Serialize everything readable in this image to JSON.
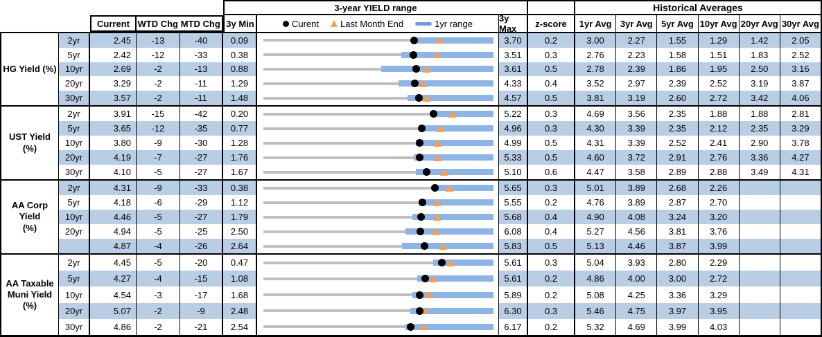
{
  "colors": {
    "stripe": "#B9CDE5",
    "bar": "#8DB4E2",
    "legend_bar": "#6D9ED8",
    "track": "#BFBFBF",
    "dot": "#000000",
    "triangle": "#F79F53",
    "border": "#000000"
  },
  "titles": {
    "range": "3-year YIELD range",
    "historical": "Historical Averages"
  },
  "columns": {
    "current": "Current",
    "wtd_chg": "WTD Chg",
    "mtd_chg": "MTD Chg",
    "min_3y": "3y Min",
    "max_3y": "3y Max",
    "z_score": "z-score",
    "averages": [
      "1yr Avg",
      "3yr Avg",
      "5yr Avg",
      "10yr Avg",
      "20yr Avg",
      "30yr Avg"
    ]
  },
  "legend": {
    "current": "Curent",
    "last_month": "Last Month End",
    "range_1yr": "1yr range"
  },
  "chart_data": {
    "type": "table",
    "note": "Each row embeds a 3-year range bullet chart: gray track spans min3y-max3y, blue bar = 1yr range (yr1min to max3y, estimated from pixels), black dot = current, orange triangle = last month end (lme = current - mtd/100).",
    "sections": [
      {
        "label": "HG Yield (%)",
        "label_lines": [
          "HG Yield (%)"
        ],
        "rows": [
          {
            "tenor": "2yr",
            "current": "2.45",
            "wtd": "-13",
            "mtd": "-40",
            "min3y": "0.09",
            "max3y": "3.70",
            "z": "0.2",
            "avgs": [
              "3.00",
              "2.27",
              "1.55",
              "1.29",
              "1.42",
              "2.05"
            ],
            "lme": 2.85,
            "yr1min": 2.5
          },
          {
            "tenor": "5yr",
            "current": "2.42",
            "wtd": "-12",
            "mtd": "-33",
            "min3y": "0.38",
            "max3y": "3.51",
            "z": "0.3",
            "avgs": [
              "2.76",
              "2.23",
              "1.58",
              "1.51",
              "1.83",
              "2.52"
            ],
            "lme": 2.75,
            "yr1min": 2.26
          },
          {
            "tenor": "10yr",
            "current": "2.69",
            "wtd": "-2",
            "mtd": "-13",
            "min3y": "0.88",
            "max3y": "3.61",
            "z": "0.5",
            "avgs": [
              "2.78",
              "2.39",
              "1.86",
              "1.95",
              "2.50",
              "3.16"
            ],
            "lme": 2.82,
            "yr1min": 2.28
          },
          {
            "tenor": "20yr",
            "current": "3.29",
            "wtd": "-2",
            "mtd": "-11",
            "min3y": "1.29",
            "max3y": "4.33",
            "z": "0.4",
            "avgs": [
              "3.52",
              "2.97",
              "2.39",
              "2.52",
              "3.19",
              "3.87"
            ],
            "lme": 3.4,
            "yr1min": 3.08
          },
          {
            "tenor": "30yr",
            "current": "3.57",
            "wtd": "-2",
            "mtd": "-11",
            "min3y": "1.48",
            "max3y": "4.57",
            "z": "0.5",
            "avgs": [
              "3.81",
              "3.19",
              "2.60",
              "2.72",
              "3.42",
              "4.06"
            ],
            "lme": 3.68,
            "yr1min": 3.42
          }
        ]
      },
      {
        "label": "UST Yield (%)",
        "label_lines": [
          "UST Yield (%)"
        ],
        "rows": [
          {
            "tenor": "2yr",
            "current": "3.91",
            "wtd": "-15",
            "mtd": "-42",
            "min3y": "0.20",
            "max3y": "5.22",
            "z": "0.3",
            "avgs": [
              "4.69",
              "3.56",
              "2.35",
              "1.88",
              "1.88",
              "2.81"
            ],
            "lme": 4.33,
            "yr1min": 3.88
          },
          {
            "tenor": "5yr",
            "current": "3.65",
            "wtd": "-12",
            "mtd": "-35",
            "min3y": "0.77",
            "max3y": "4.96",
            "z": "0.3",
            "avgs": [
              "4.30",
              "3.39",
              "2.35",
              "2.12",
              "2.35",
              "3.29"
            ],
            "lme": 4.0,
            "yr1min": 3.62
          },
          {
            "tenor": "10yr",
            "current": "3.80",
            "wtd": "-9",
            "mtd": "-30",
            "min3y": "1.28",
            "max3y": "4.99",
            "z": "0.5",
            "avgs": [
              "4.31",
              "3.39",
              "2.52",
              "2.41",
              "2.90",
              "3.78"
            ],
            "lme": 4.1,
            "yr1min": 3.74
          },
          {
            "tenor": "20yr",
            "current": "4.19",
            "wtd": "-7",
            "mtd": "-27",
            "min3y": "1.76",
            "max3y": "5.33",
            "z": "0.5",
            "avgs": [
              "4.60",
              "3.72",
              "2.91",
              "2.76",
              "3.36",
              "4.27"
            ],
            "lme": 4.46,
            "yr1min": 4.09
          },
          {
            "tenor": "30yr",
            "current": "4.10",
            "wtd": "-5",
            "mtd": "-27",
            "min3y": "1.67",
            "max3y": "5.10",
            "z": "0.6",
            "avgs": [
              "4.47",
              "3.58",
              "2.89",
              "2.88",
              "3.49",
              "4.31"
            ],
            "lme": 4.37,
            "yr1min": 3.94
          }
        ]
      },
      {
        "label": "AA Corp Yield (%)",
        "label_lines": [
          "AA Corp Yield",
          "(%)"
        ],
        "rows": [
          {
            "tenor": "2yr",
            "current": "4.31",
            "wtd": "-9",
            "mtd": "-33",
            "min3y": "0.38",
            "max3y": "5.65",
            "z": "0.3",
            "avgs": [
              "5.01",
              "3.89",
              "2.68",
              "2.26",
              "",
              ""
            ],
            "lme": 4.64,
            "yr1min": 4.28
          },
          {
            "tenor": "5yr",
            "current": "4.18",
            "wtd": "-6",
            "mtd": "-29",
            "min3y": "1.12",
            "max3y": "5.55",
            "z": "0.2",
            "avgs": [
              "4.76",
              "3.89",
              "2.87",
              "2.70",
              "",
              ""
            ],
            "lme": 4.47,
            "yr1min": 4.11
          },
          {
            "tenor": "10yr",
            "current": "4.46",
            "wtd": "-5",
            "mtd": "-27",
            "min3y": "1.79",
            "max3y": "5.68",
            "z": "0.4",
            "avgs": [
              "4.90",
              "4.08",
              "3.24",
              "3.20",
              "",
              ""
            ],
            "lme": 4.73,
            "yr1min": 4.31
          },
          {
            "tenor": "20yr",
            "current": "4.94",
            "wtd": "-5",
            "mtd": "-25",
            "min3y": "2.50",
            "max3y": "6.08",
            "z": "0.4",
            "avgs": [
              "5.27",
              "4.56",
              "3.81",
              "3.76",
              "",
              ""
            ],
            "lme": 5.19,
            "yr1min": 4.71
          },
          {
            "tenor": "",
            "current": "4.87",
            "wtd": "-4",
            "mtd": "-26",
            "min3y": "2.64",
            "max3y": "5.83",
            "z": "0.5",
            "avgs": [
              "5.13",
              "4.46",
              "3.87",
              "3.99",
              "",
              ""
            ],
            "lme": 5.13,
            "yr1min": 4.56
          }
        ]
      },
      {
        "label": "AA Taxable Muni Yield (%)",
        "label_lines": [
          "AA Taxable",
          "Muni Yield",
          "(%)"
        ],
        "rows": [
          {
            "tenor": "2yr",
            "current": "4.45",
            "wtd": "-5",
            "mtd": "-20",
            "min3y": "0.47",
            "max3y": "5.61",
            "z": "0.3",
            "avgs": [
              "5.04",
              "3.93",
              "2.80",
              "2.29",
              "",
              ""
            ],
            "lme": 4.65,
            "yr1min": 4.26
          },
          {
            "tenor": "5yr",
            "current": "4.27",
            "wtd": "-4",
            "mtd": "-15",
            "min3y": "1.08",
            "max3y": "5.61",
            "z": "0.2",
            "avgs": [
              "4.86",
              "4.00",
              "3.00",
              "2.72",
              "",
              ""
            ],
            "lme": 4.42,
            "yr1min": 4.11
          },
          {
            "tenor": "10yr",
            "current": "4.54",
            "wtd": "-3",
            "mtd": "-17",
            "min3y": "1.68",
            "max3y": "5.89",
            "z": "0.2",
            "avgs": [
              "5.08",
              "4.25",
              "3.36",
              "3.29",
              "",
              ""
            ],
            "lme": 4.71,
            "yr1min": 4.41
          },
          {
            "tenor": "20yr",
            "current": "5.07",
            "wtd": "-2",
            "mtd": "-9",
            "min3y": "2.48",
            "max3y": "6.30",
            "z": "0.3",
            "avgs": [
              "5.46",
              "4.75",
              "3.97",
              "3.95",
              "",
              ""
            ],
            "lme": 5.16,
            "yr1min": 4.92
          },
          {
            "tenor": "30yr",
            "current": "4.86",
            "wtd": "-2",
            "mtd": "-21",
            "min3y": "2.54",
            "max3y": "6.17",
            "z": "0.2",
            "avgs": [
              "5.32",
              "4.69",
              "3.99",
              "4.03",
              "",
              ""
            ],
            "lme": 5.07,
            "yr1min": 4.78
          }
        ]
      }
    ]
  }
}
